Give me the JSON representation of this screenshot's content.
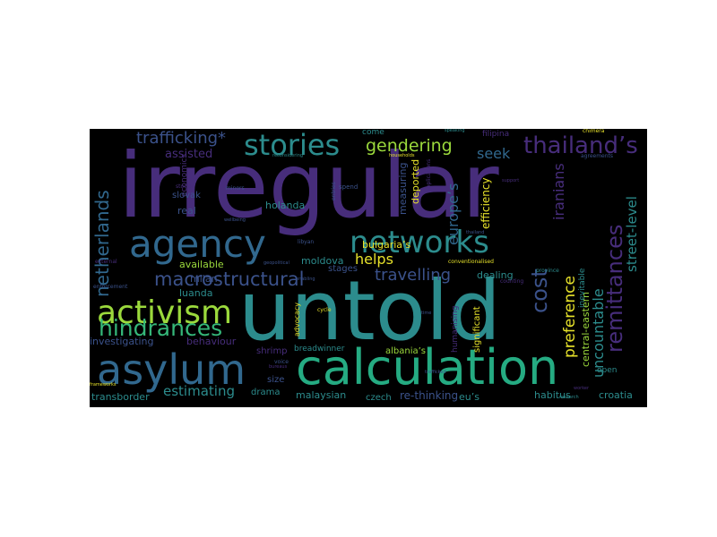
{
  "palette": {
    "purple": "#472d7b",
    "teal": "#2c8c8d",
    "blue": "#3b528b",
    "green": "#43b37a",
    "lime": "#9bd93c",
    "yellow": "#e6e12a"
  },
  "words": [
    {
      "text": "irregular"
    },
    {
      "text": "untold"
    },
    {
      "text": "calculation"
    },
    {
      "text": "agency"
    },
    {
      "text": "networks"
    },
    {
      "text": "asylum"
    },
    {
      "text": "activism"
    },
    {
      "text": "stories"
    },
    {
      "text": "hindrances"
    },
    {
      "text": "thailand’s"
    },
    {
      "text": "remittances"
    },
    {
      "text": "netherlands"
    },
    {
      "text": "macrostructural"
    },
    {
      "text": "trafficking*"
    },
    {
      "text": "gendering"
    },
    {
      "text": "cost"
    },
    {
      "text": "preference"
    },
    {
      "text": "uncountable"
    },
    {
      "text": "street-level"
    },
    {
      "text": "europe’s"
    },
    {
      "text": "iranians"
    },
    {
      "text": "central-eastern"
    },
    {
      "text": "travelling"
    },
    {
      "text": "helps"
    },
    {
      "text": "estimating"
    },
    {
      "text": "seek"
    },
    {
      "text": "assisted"
    },
    {
      "text": "holanda"
    },
    {
      "text": "moldova"
    },
    {
      "text": "bulgaria’s"
    },
    {
      "text": "available"
    },
    {
      "text": "milan"
    },
    {
      "text": "luanda"
    },
    {
      "text": "slovak"
    },
    {
      "text": "real"
    },
    {
      "text": "investigating"
    },
    {
      "text": "behaviour"
    },
    {
      "text": "transborder"
    },
    {
      "text": "drama"
    },
    {
      "text": "malaysian"
    },
    {
      "text": "czech"
    },
    {
      "text": "re-thinking"
    },
    {
      "text": "eu’s"
    },
    {
      "text": "habitus"
    },
    {
      "text": "croatia"
    },
    {
      "text": "dealing"
    },
    {
      "text": "stages"
    },
    {
      "text": "size"
    },
    {
      "text": "shrimp"
    },
    {
      "text": "breadwinner"
    },
    {
      "text": "albania’s"
    },
    {
      "text": "efficiency"
    },
    {
      "text": "deported"
    },
    {
      "text": "measuring"
    },
    {
      "text": "significant"
    },
    {
      "text": "humanising"
    },
    {
      "text": "inevitable"
    },
    {
      "text": "open"
    },
    {
      "text": "come"
    },
    {
      "text": "filipina"
    },
    {
      "text": "economics"
    },
    {
      "text": "minors"
    },
    {
      "text": "spend"
    },
    {
      "text": "advocacy"
    },
    {
      "text": "cycle"
    },
    {
      "text": "voice"
    },
    {
      "text": "stocks"
    },
    {
      "text": "counting"
    },
    {
      "text": "province"
    },
    {
      "text": "enforcement"
    },
    {
      "text": "external"
    },
    {
      "text": "frameworks"
    },
    {
      "text": "trafficked"
    },
    {
      "text": "chimera"
    },
    {
      "text": "agreements"
    },
    {
      "text": "research"
    },
    {
      "text": "worker"
    },
    {
      "text": "time"
    },
    {
      "text": "libyan"
    },
    {
      "text": "wellbeing"
    },
    {
      "text": "geopolitical"
    },
    {
      "text": "households"
    },
    {
      "text": "reconsidering"
    },
    {
      "text": "speaking"
    },
    {
      "text": "entries"
    },
    {
      "text": "applications"
    },
    {
      "text": "conventionalised"
    },
    {
      "text": "bureaus"
    },
    {
      "text": "thailand"
    },
    {
      "text": "enabling"
    },
    {
      "text": "support"
    }
  ]
}
